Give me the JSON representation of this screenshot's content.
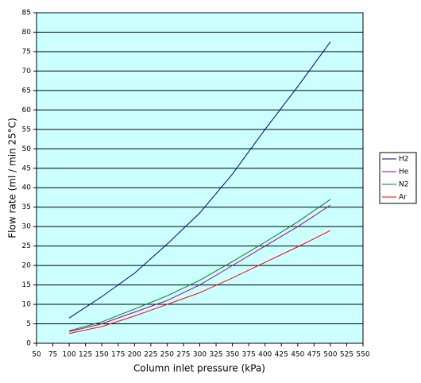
{
  "chart_data": {
    "type": "line",
    "x_label": "Column inlet pressure (kPa)",
    "y_label": "Flow rate (ml / min 25°C)",
    "x": [
      100,
      150,
      200,
      250,
      300,
      350,
      400,
      450,
      500
    ],
    "series": [
      {
        "name": "H2",
        "color": "#000080",
        "values": [
          6.5,
          12,
          18,
          25.5,
          33.5,
          43.5,
          55,
          66,
          77.5
        ]
      },
      {
        "name": "He",
        "color": "#990099",
        "values": [
          3,
          5,
          8,
          11,
          15,
          20,
          25,
          30,
          35.5
        ]
      },
      {
        "name": "N2",
        "color": "#008000",
        "values": [
          3.2,
          5.5,
          8.8,
          12.2,
          16.2,
          21,
          26,
          31.2,
          37
        ]
      },
      {
        "name": "Ar",
        "color": "#ff0000",
        "values": [
          2.5,
          4.3,
          7,
          10,
          13,
          16.8,
          20.8,
          24.8,
          29
        ]
      }
    ],
    "xlim": [
      50,
      550
    ],
    "ylim": [
      0,
      85
    ],
    "xticks": [
      50,
      75,
      100,
      125,
      150,
      175,
      200,
      225,
      250,
      275,
      300,
      325,
      350,
      375,
      400,
      425,
      450,
      475,
      500,
      525,
      550
    ],
    "yticks": [
      0,
      5,
      10,
      15,
      20,
      25,
      30,
      35,
      40,
      45,
      50,
      55,
      60,
      65,
      70,
      75,
      80,
      85
    ],
    "grid": true,
    "background": "#ccffff",
    "legend": "right"
  }
}
